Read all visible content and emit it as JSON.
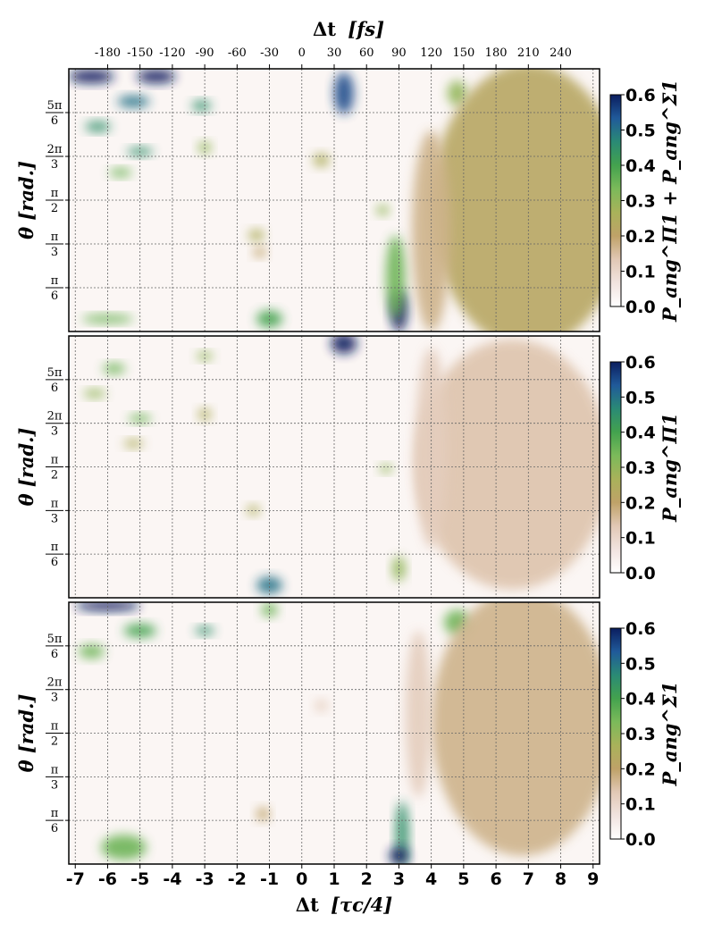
{
  "chart_data": {
    "type": "heatmap",
    "top_axis": {
      "label_main": "Δt",
      "label_unit": "[fs]",
      "ticks": [
        "-180",
        "-150",
        "-120",
        "-90",
        "-60",
        "-30",
        "0",
        "30",
        "60",
        "90",
        "120",
        "150",
        "180",
        "210",
        "240"
      ],
      "tick_values": [
        -180,
        -150,
        -120,
        -90,
        -60,
        -30,
        0,
        30,
        60,
        90,
        120,
        150,
        180,
        210,
        240
      ]
    },
    "bottom_axis": {
      "label_main": "Δt",
      "label_unit": "[τc/4]",
      "ticks": [
        "-7",
        "-6",
        "-5",
        "-4",
        "-3",
        "-2",
        "-1",
        "0",
        "1",
        "2",
        "3",
        "4",
        "5",
        "6",
        "7",
        "8",
        "9"
      ],
      "xlim": [
        -7.2,
        9.2
      ]
    },
    "y_axis": {
      "label": "θ [rad.]",
      "ticks": [
        {
          "num": "5π",
          "den": "6",
          "value": 2.618
        },
        {
          "num": "2π",
          "den": "3",
          "value": 2.094
        },
        {
          "num": "π",
          "den": "2",
          "value": 1.571
        },
        {
          "num": "π",
          "den": "3",
          "value": 1.047
        },
        {
          "num": "π",
          "den": "6",
          "value": 0.524
        }
      ],
      "ylim": [
        0,
        3.1416
      ]
    },
    "colorbar": {
      "range": [
        0.0,
        0.6
      ],
      "ticks": [
        "0.6",
        "0.5",
        "0.4",
        "0.3",
        "0.2",
        "0.1",
        "0.0"
      ],
      "colormap": "gist_earth_r",
      "colors": [
        "#ffffff",
        "#f1e3df",
        "#e1c8b5",
        "#bfa268",
        "#a9b25a",
        "#7bba5a",
        "#43a24e",
        "#2a8a75",
        "#205a9a",
        "#0b1e5f"
      ]
    },
    "panels": [
      {
        "id": "top",
        "colorbar_label": "P_ang^Π1 + P_ang^Σ1"
      },
      {
        "id": "middle",
        "colorbar_label": "P_ang^Π1"
      },
      {
        "id": "bottom",
        "colorbar_label": "P_ang^Σ1"
      }
    ],
    "grid": true
  }
}
